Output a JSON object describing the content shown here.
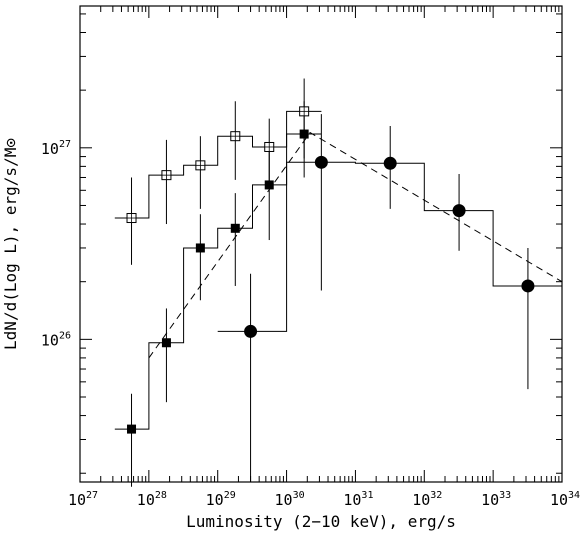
{
  "chart_data": {
    "type": "scatter",
    "xlabel": "Luminosity (2−10 keV), erg/s",
    "ylabel": "LdN/d(Log L), erg/s/M⊙",
    "x_scale": "log",
    "y_scale": "log",
    "xlim": [
      1e+27,
      1e+34
    ],
    "ylim": [
      1.8e+25,
      5.5e+27
    ],
    "x_ticks": [
      {
        "base": "10",
        "exp": "27",
        "value": 1e+27
      },
      {
        "base": "10",
        "exp": "28",
        "value": 1e+28
      },
      {
        "base": "10",
        "exp": "29",
        "value": 1e+29
      },
      {
        "base": "10",
        "exp": "30",
        "value": 1e+30
      },
      {
        "base": "10",
        "exp": "31",
        "value": 1e+31
      },
      {
        "base": "10",
        "exp": "32",
        "value": 1e+32
      },
      {
        "base": "10",
        "exp": "33",
        "value": 1e+33
      },
      {
        "base": "10",
        "exp": "34",
        "value": 1e+34
      }
    ],
    "y_ticks": [
      {
        "base": "10",
        "exp": "26",
        "value": 1e+26
      },
      {
        "base": "10",
        "exp": "27",
        "value": 1e+27
      }
    ],
    "series": [
      {
        "marker": "open-square",
        "points": [
          {
            "x": 5.6e+27,
            "y": 4.3e+26,
            "ylo": 2.45e+26,
            "yhi": 7e+26
          },
          {
            "x": 1.8e+28,
            "y": 7.2e+26,
            "ylo": 4e+26,
            "yhi": 1.1e+27
          },
          {
            "x": 5.6e+28,
            "y": 8.1e+26,
            "ylo": 4.8e+26,
            "yhi": 1.15e+27
          },
          {
            "x": 1.8e+29,
            "y": 1.15e+27,
            "ylo": 6.8e+26,
            "yhi": 1.75e+27
          },
          {
            "x": 5.6e+29,
            "y": 1.01e+27,
            "ylo": 6.3e+26,
            "yhi": 1.42e+27
          },
          {
            "x": 1.8e+30,
            "y": 1.55e+27,
            "ylo": 8.8e+26,
            "yhi": 2.3e+27
          }
        ],
        "step_edges": [
          3.2e+27,
          1e+28,
          3.2e+28,
          1e+29,
          3.2e+29,
          1e+30,
          3.2e+30
        ],
        "step_values": [
          4.3e+26,
          7.2e+26,
          8.1e+26,
          1.15e+27,
          1.01e+27,
          1.55e+27
        ]
      },
      {
        "marker": "filled-square",
        "points": [
          {
            "x": 5.6e+27,
            "y": 3.4e+25,
            "ylo": 1.7e+25,
            "yhi": 5.2e+25
          },
          {
            "x": 1.8e+28,
            "y": 9.6e+25,
            "ylo": 4.7e+25,
            "yhi": 1.45e+26
          },
          {
            "x": 5.6e+28,
            "y": 3e+26,
            "ylo": 1.6e+26,
            "yhi": 4.5e+26
          },
          {
            "x": 1.8e+29,
            "y": 3.8e+26,
            "ylo": 1.9e+26,
            "yhi": 5.8e+26
          },
          {
            "x": 5.6e+29,
            "y": 6.4e+26,
            "ylo": 3.3e+26,
            "yhi": 9.6e+26
          },
          {
            "x": 1.8e+30,
            "y": 1.18e+27,
            "ylo": 7e+26,
            "yhi": 1.75e+27
          }
        ],
        "step_edges": [
          3.2e+27,
          1e+28,
          3.2e+28,
          1e+29,
          3.2e+29,
          1e+30,
          3.2e+30
        ],
        "step_values": [
          3.4e+25,
          9.6e+25,
          3e+26,
          3.8e+26,
          6.4e+26,
          1.18e+27
        ]
      },
      {
        "marker": "filled-circle",
        "points": [
          {
            "x": 3e+29,
            "y": 1.1e+26,
            "ylo": 1.8e+25,
            "yhi": 2.2e+26
          },
          {
            "x": 3.2e+30,
            "y": 8.4e+26,
            "ylo": 1.8e+26,
            "yhi": 1.5e+27
          },
          {
            "x": 3.2e+31,
            "y": 8.3e+26,
            "ylo": 4.8e+26,
            "yhi": 1.3e+27
          },
          {
            "x": 3.2e+32,
            "y": 4.7e+26,
            "ylo": 2.9e+26,
            "yhi": 7.3e+26
          },
          {
            "x": 3.2e+33,
            "y": 1.9e+26,
            "ylo": 5.5e+25,
            "yhi": 3e+26
          }
        ],
        "step_edges": [
          1e+29,
          1e+30,
          1e+31,
          1e+32,
          1e+33,
          1e+34
        ],
        "step_values": [
          1.1e+26,
          8.4e+26,
          8.3e+26,
          4.7e+26,
          1.9e+26
        ]
      }
    ],
    "model_line": {
      "style": "dashed",
      "points": [
        {
          "x": 1e+28,
          "y": 8e+25
        },
        {
          "x": 2.2e+30,
          "y": 1.2e+27
        },
        {
          "x": 1e+34,
          "y": 2e+26
        }
      ]
    }
  }
}
